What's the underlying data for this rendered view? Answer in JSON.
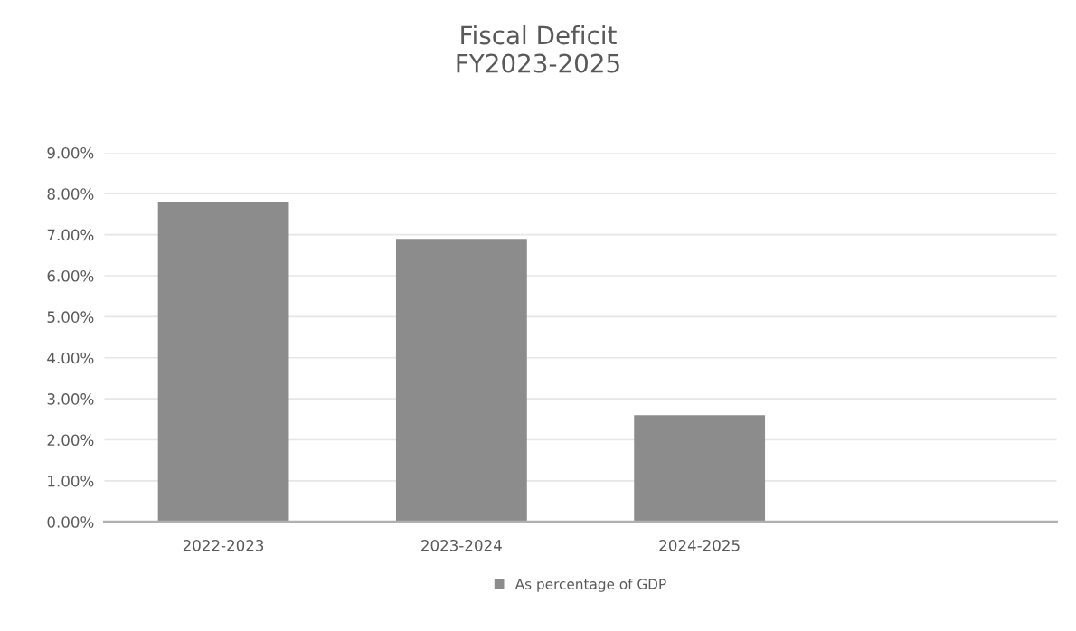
{
  "chart_data": {
    "type": "bar",
    "title": "Fiscal Deficit\nFY2023-2025",
    "categories": [
      "2022-2023",
      "2023-2024",
      "2024-2025",
      null
    ],
    "series": [
      {
        "name": "As percentage of GDP",
        "color": "#8c8c8c",
        "values": [
          7.8,
          6.9,
          2.6,
          null
        ]
      }
    ],
    "ylim": [
      0,
      9
    ],
    "yticks": [
      {
        "value": 0,
        "label": "0.00%"
      },
      {
        "value": 1,
        "label": "1.00%"
      },
      {
        "value": 2,
        "label": "2.00%"
      },
      {
        "value": 3,
        "label": "3.00%"
      },
      {
        "value": 4,
        "label": "4.00%"
      },
      {
        "value": 5,
        "label": "5.00%"
      },
      {
        "value": 6,
        "label": "6.00%"
      },
      {
        "value": 7,
        "label": "7.00%"
      },
      {
        "value": 8,
        "label": "8.00%"
      },
      {
        "value": 9,
        "label": "9.00%"
      }
    ],
    "grid": "y",
    "legend": "bottom"
  }
}
